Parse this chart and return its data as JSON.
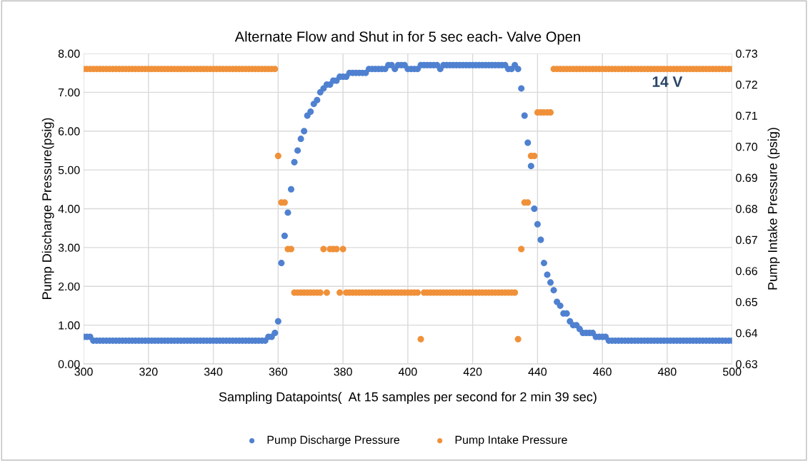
{
  "chart_data": {
    "type": "scatter",
    "title": "Alternate Flow and Shut in for 5 sec each- Valve Open",
    "xlabel": "Sampling Datapoints(  At 15 samples per second for 2 min 39 sec)",
    "ylabel": "Pump Discharge Pressure(psig)",
    "y2label": "Pump Intake Pressure (psig)",
    "x": [
      300,
      301,
      302,
      303,
      304,
      305,
      306,
      307,
      308,
      309,
      310,
      311,
      312,
      313,
      314,
      315,
      316,
      317,
      318,
      319,
      320,
      321,
      322,
      323,
      324,
      325,
      326,
      327,
      328,
      329,
      330,
      331,
      332,
      333,
      334,
      335,
      336,
      337,
      338,
      339,
      340,
      341,
      342,
      343,
      344,
      345,
      346,
      347,
      348,
      349,
      350,
      351,
      352,
      353,
      354,
      355,
      356,
      357,
      358,
      359,
      360,
      361,
      362,
      363,
      364,
      365,
      366,
      367,
      368,
      369,
      370,
      371,
      372,
      373,
      374,
      375,
      376,
      377,
      378,
      379,
      380,
      381,
      382,
      383,
      384,
      385,
      386,
      387,
      388,
      389,
      390,
      391,
      392,
      393,
      394,
      395,
      396,
      397,
      398,
      399,
      400,
      401,
      402,
      403,
      404,
      405,
      406,
      407,
      408,
      409,
      410,
      411,
      412,
      413,
      414,
      415,
      416,
      417,
      418,
      419,
      420,
      421,
      422,
      423,
      424,
      425,
      426,
      427,
      428,
      429,
      430,
      431,
      432,
      433,
      434,
      435,
      436,
      437,
      438,
      439,
      440,
      441,
      442,
      443,
      444,
      445,
      446,
      447,
      448,
      449,
      450,
      451,
      452,
      453,
      454,
      455,
      456,
      457,
      458,
      459,
      460,
      461,
      462,
      463,
      464,
      465,
      466,
      467,
      468,
      469,
      470,
      471,
      472,
      473,
      474,
      475,
      476,
      477,
      478,
      479,
      480,
      481,
      482,
      483,
      484,
      485,
      486,
      487,
      488,
      489,
      490,
      491,
      492,
      493,
      494,
      495,
      496,
      497,
      498,
      499,
      500
    ],
    "series": [
      {
        "name": "Pump Discharge Pressure",
        "color": "#4f81d0",
        "values": [
          0.7,
          0.7,
          0.7,
          0.6,
          0.6,
          0.6,
          0.6,
          0.6,
          0.6,
          0.6,
          0.6,
          0.6,
          0.6,
          0.6,
          0.6,
          0.6,
          0.6,
          0.6,
          0.6,
          0.6,
          0.6,
          0.6,
          0.6,
          0.6,
          0.6,
          0.6,
          0.6,
          0.6,
          0.6,
          0.6,
          0.6,
          0.6,
          0.6,
          0.6,
          0.6,
          0.6,
          0.6,
          0.6,
          0.6,
          0.6,
          0.6,
          0.6,
          0.6,
          0.6,
          0.6,
          0.6,
          0.6,
          0.6,
          0.6,
          0.6,
          0.6,
          0.6,
          0.6,
          0.6,
          0.6,
          0.6,
          0.6,
          0.7,
          0.7,
          0.8,
          1.1,
          2.6,
          3.3,
          3.9,
          4.5,
          5.2,
          5.5,
          5.8,
          6.0,
          6.4,
          6.5,
          6.7,
          6.8,
          7.0,
          7.1,
          7.2,
          7.2,
          7.3,
          7.3,
          7.4,
          7.4,
          7.4,
          7.5,
          7.5,
          7.5,
          7.5,
          7.5,
          7.5,
          7.6,
          7.6,
          7.6,
          7.6,
          7.6,
          7.6,
          7.7,
          7.7,
          7.6,
          7.7,
          7.7,
          7.7,
          7.6,
          7.6,
          7.6,
          7.6,
          7.7,
          7.7,
          7.7,
          7.7,
          7.7,
          7.7,
          7.6,
          7.7,
          7.7,
          7.7,
          7.7,
          7.7,
          7.7,
          7.7,
          7.7,
          7.7,
          7.7,
          7.7,
          7.7,
          7.7,
          7.7,
          7.7,
          7.7,
          7.7,
          7.7,
          7.7,
          7.7,
          7.6,
          7.6,
          7.7,
          7.6,
          7.1,
          6.4,
          5.7,
          5.1,
          4.0,
          3.6,
          3.2,
          2.6,
          2.3,
          2.1,
          1.9,
          1.6,
          1.5,
          1.3,
          1.3,
          1.1,
          1.0,
          1.0,
          0.9,
          0.8,
          0.8,
          0.8,
          0.8,
          0.7,
          0.7,
          0.7,
          0.7,
          0.6,
          0.6,
          0.6,
          0.6,
          0.6,
          0.6,
          0.6,
          0.6,
          0.6,
          0.6,
          0.6,
          0.6,
          0.6,
          0.6,
          0.6,
          0.6,
          0.6,
          0.6,
          0.6,
          0.6,
          0.6,
          0.6,
          0.6,
          0.6,
          0.6,
          0.6,
          0.6,
          0.6,
          0.6,
          0.6,
          0.6,
          0.6,
          0.6,
          0.6,
          0.6,
          0.6,
          0.6,
          0.6,
          0.6
        ]
      },
      {
        "name": "Pump Intake Pressure",
        "color": "#f0913a",
        "axis": "y2",
        "values": [
          0.725,
          0.725,
          0.725,
          0.725,
          0.725,
          0.725,
          0.725,
          0.725,
          0.725,
          0.725,
          0.725,
          0.725,
          0.725,
          0.725,
          0.725,
          0.725,
          0.725,
          0.725,
          0.725,
          0.725,
          0.725,
          0.725,
          0.725,
          0.725,
          0.725,
          0.725,
          0.725,
          0.725,
          0.725,
          0.725,
          0.725,
          0.725,
          0.725,
          0.725,
          0.725,
          0.725,
          0.725,
          0.725,
          0.725,
          0.725,
          0.725,
          0.725,
          0.725,
          0.725,
          0.725,
          0.725,
          0.725,
          0.725,
          0.725,
          0.725,
          0.725,
          0.725,
          0.725,
          0.725,
          0.725,
          0.725,
          0.725,
          0.725,
          0.725,
          0.725,
          0.697,
          0.682,
          0.682,
          0.667,
          0.667,
          0.653,
          0.653,
          0.653,
          0.653,
          0.653,
          0.653,
          0.653,
          0.653,
          0.653,
          0.667,
          0.653,
          0.667,
          0.667,
          0.667,
          0.653,
          0.667,
          0.653,
          0.653,
          0.653,
          0.653,
          0.653,
          0.653,
          0.653,
          0.653,
          0.653,
          0.653,
          0.653,
          0.653,
          0.653,
          0.653,
          0.653,
          0.653,
          0.653,
          0.653,
          0.653,
          0.653,
          0.653,
          0.653,
          0.653,
          0.638,
          0.653,
          0.653,
          0.653,
          0.653,
          0.653,
          0.653,
          0.653,
          0.653,
          0.653,
          0.653,
          0.653,
          0.653,
          0.653,
          0.653,
          0.653,
          0.653,
          0.653,
          0.653,
          0.653,
          0.653,
          0.653,
          0.653,
          0.653,
          0.653,
          0.653,
          0.653,
          0.653,
          0.653,
          0.653,
          0.638,
          0.667,
          0.682,
          0.682,
          0.697,
          0.697,
          0.711,
          0.711,
          0.711,
          0.711,
          0.711,
          0.725,
          0.725,
          0.725,
          0.725,
          0.725,
          0.725,
          0.725,
          0.725,
          0.725,
          0.725,
          0.725,
          0.725,
          0.725,
          0.725,
          0.725,
          0.725,
          0.725,
          0.725,
          0.725,
          0.725,
          0.725,
          0.725,
          0.725,
          0.725,
          0.725,
          0.725,
          0.725,
          0.725,
          0.725,
          0.725,
          0.725,
          0.725,
          0.725,
          0.725,
          0.725,
          0.725,
          0.725,
          0.725,
          0.725,
          0.725,
          0.725,
          0.725,
          0.725,
          0.725,
          0.725,
          0.725,
          0.725,
          0.725,
          0.725,
          0.725,
          0.725,
          0.725,
          0.725,
          0.725,
          0.725,
          0.725
        ]
      }
    ],
    "xlim": [
      300,
      500
    ],
    "xticks": [
      300,
      320,
      340,
      360,
      380,
      400,
      420,
      440,
      460,
      480,
      500
    ],
    "ylim": [
      0,
      8
    ],
    "yticks": [
      {
        "value": 0,
        "label": "0.00"
      },
      {
        "value": 1,
        "label": "1.00"
      },
      {
        "value": 2,
        "label": "2.00"
      },
      {
        "value": 3,
        "label": "3.00"
      },
      {
        "value": 4,
        "label": "4.00"
      },
      {
        "value": 5,
        "label": "5.00"
      },
      {
        "value": 6,
        "label": "6.00"
      },
      {
        "value": 7,
        "label": "7.00"
      },
      {
        "value": 8,
        "label": "8.00"
      }
    ],
    "y2lim": [
      0.63,
      0.73
    ],
    "y2ticks": [
      0.63,
      0.64,
      0.65,
      0.66,
      0.67,
      0.68,
      0.69,
      {
        "value": 0.7,
        "label": "0.70"
      },
      0.71,
      0.72,
      0.73
    ],
    "grid": true,
    "legend": "bottom",
    "marker": "circle",
    "annotations": [
      "14 V"
    ]
  }
}
